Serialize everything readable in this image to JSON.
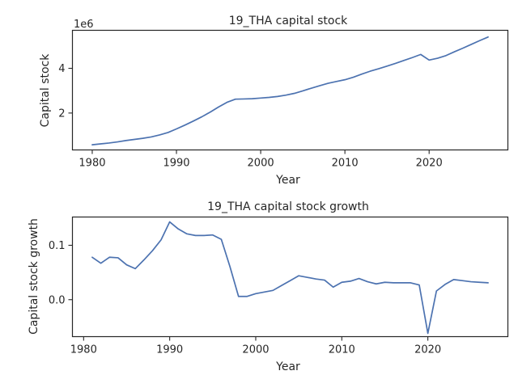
{
  "chart_data": [
    {
      "type": "line",
      "title": "19_THA capital stock",
      "xlabel": "Year",
      "ylabel": "Capital stock",
      "offset_text": "1e6",
      "xlim": [
        1977.65,
        2029.35
      ],
      "ylim": [
        0.35,
        5.7
      ],
      "x_ticks": [
        1980,
        1990,
        2000,
        2010,
        2020
      ],
      "y_ticks": [
        2,
        4
      ],
      "y_tick_labels": [
        "2",
        "4"
      ],
      "grid": false,
      "line_color": "#4c72b0",
      "series": [
        {
          "x": [
            1980,
            1981,
            1982,
            1983,
            1984,
            1985,
            1986,
            1987,
            1988,
            1989,
            1990,
            1991,
            1992,
            1993,
            1994,
            1995,
            1996,
            1997,
            1998,
            1999,
            2000,
            2001,
            2002,
            2003,
            2004,
            2005,
            2006,
            2007,
            2008,
            2009,
            2010,
            2011,
            2012,
            2013,
            2014,
            2015,
            2016,
            2017,
            2018,
            2019,
            2020,
            2021,
            2022,
            2023,
            2024,
            2025,
            2026,
            2027
          ],
          "values": [
            0.58,
            0.62,
            0.66,
            0.71,
            0.77,
            0.82,
            0.87,
            0.93,
            1.02,
            1.13,
            1.29,
            1.46,
            1.64,
            1.83,
            2.04,
            2.27,
            2.48,
            2.62,
            2.63,
            2.64,
            2.67,
            2.7,
            2.74,
            2.8,
            2.88,
            2.99,
            3.11,
            3.22,
            3.33,
            3.41,
            3.49,
            3.6,
            3.74,
            3.87,
            3.98,
            4.1,
            4.22,
            4.35,
            4.48,
            4.62,
            4.37,
            4.45,
            4.57,
            4.74,
            4.9,
            5.07,
            5.24,
            5.4
          ]
        }
      ]
    },
    {
      "type": "line",
      "title": "19_THA capital stock growth",
      "xlabel": "Year",
      "ylabel": "Capital stock growth",
      "xlim": [
        1978.7,
        2029.3
      ],
      "ylim": [
        -0.068,
        0.152
      ],
      "x_ticks": [
        1980,
        1990,
        2000,
        2010,
        2020
      ],
      "y_ticks": [
        0.0,
        0.1
      ],
      "y_tick_labels": [
        "0.0",
        "0.1"
      ],
      "grid": false,
      "line_color": "#4c72b0",
      "series": [
        {
          "x": [
            1981,
            1982,
            1983,
            1984,
            1985,
            1986,
            1987,
            1988,
            1989,
            1990,
            1991,
            1992,
            1993,
            1994,
            1995,
            1996,
            1997,
            1998,
            1999,
            2000,
            2001,
            2002,
            2003,
            2004,
            2005,
            2006,
            2007,
            2008,
            2009,
            2010,
            2011,
            2012,
            2013,
            2014,
            2015,
            2016,
            2017,
            2018,
            2019,
            2020,
            2021,
            2022,
            2023,
            2024,
            2025,
            2026,
            2027
          ],
          "values": [
            0.078,
            0.067,
            0.078,
            0.077,
            0.064,
            0.057,
            0.073,
            0.09,
            0.11,
            0.143,
            0.13,
            0.121,
            0.118,
            0.118,
            0.119,
            0.111,
            0.061,
            0.006,
            0.006,
            0.011,
            0.014,
            0.017,
            0.026,
            0.035,
            0.044,
            0.041,
            0.038,
            0.036,
            0.023,
            0.032,
            0.034,
            0.039,
            0.033,
            0.029,
            0.032,
            0.031,
            0.031,
            0.031,
            0.027,
            -0.062,
            0.016,
            0.028,
            0.037,
            0.035,
            0.033,
            0.032,
            0.031
          ]
        }
      ]
    }
  ]
}
